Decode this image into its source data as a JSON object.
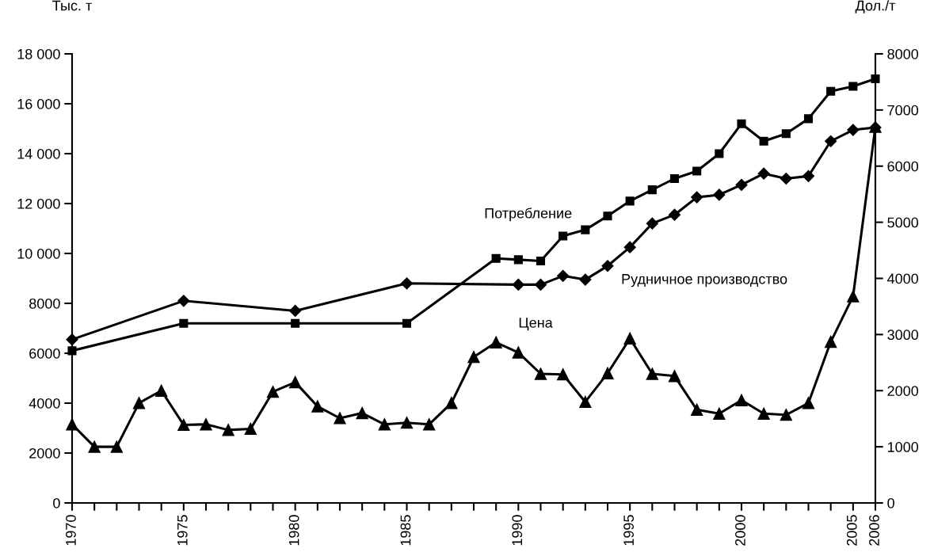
{
  "chart_data": {
    "type": "line",
    "ylabel": "Тыс. т",
    "y2label": "Дол./т",
    "xlim": [
      1970,
      2006
    ],
    "ylim": [
      0,
      18000
    ],
    "y2lim": [
      0,
      8000
    ],
    "xticks": [
      1970,
      {
        "value": 1971,
        "label": null
      },
      {
        "value": 1972,
        "label": null
      },
      {
        "value": 1973,
        "label": null
      },
      {
        "value": 1974,
        "label": null
      },
      1975,
      {
        "value": 1976,
        "label": null
      },
      {
        "value": 1977,
        "label": null
      },
      {
        "value": 1978,
        "label": null
      },
      {
        "value": 1979,
        "label": null
      },
      1980,
      {
        "value": 1981,
        "label": null
      },
      {
        "value": 1982,
        "label": null
      },
      {
        "value": 1983,
        "label": null
      },
      {
        "value": 1984,
        "label": null
      },
      1985,
      {
        "value": 1986,
        "label": null
      },
      {
        "value": 1987,
        "label": null
      },
      {
        "value": 1988,
        "label": null
      },
      {
        "value": 1989,
        "label": null
      },
      1990,
      {
        "value": 1991,
        "label": null
      },
      {
        "value": 1992,
        "label": null
      },
      {
        "value": 1993,
        "label": null
      },
      {
        "value": 1994,
        "label": null
      },
      1995,
      {
        "value": 1996,
        "label": null
      },
      {
        "value": 1997,
        "label": null
      },
      {
        "value": 1998,
        "label": null
      },
      {
        "value": 1999,
        "label": null
      },
      2000,
      {
        "value": 2001,
        "label": null
      },
      {
        "value": 2002,
        "label": null
      },
      {
        "value": 2003,
        "label": null
      },
      {
        "value": 2004,
        "label": null
      },
      2005,
      2006
    ],
    "yticks": [
      0,
      2000,
      4000,
      6000,
      8000,
      {
        "value": 10000,
        "label": "10 000"
      },
      {
        "value": 12000,
        "label": "12 000"
      },
      {
        "value": 14000,
        "label": "14 000"
      },
      {
        "value": 16000,
        "label": "16 000"
      },
      {
        "value": 18000,
        "label": "18 000"
      }
    ],
    "y2ticks": [
      0,
      1000,
      2000,
      3000,
      4000,
      5000,
      6000,
      7000,
      8000
    ],
    "grid": false,
    "legend": false,
    "line_style": "solid",
    "series": [
      {
        "name": "Потребление",
        "color": "#000000",
        "marker": "square",
        "x": [
          1970,
          1975,
          1980,
          1985,
          1989,
          1990,
          1991,
          1992,
          1993,
          1994,
          1995,
          1996,
          1997,
          1998,
          1999,
          2000,
          2001,
          2002,
          2003,
          2004,
          2005,
          2006
        ],
        "values": [
          6100,
          7200,
          7200,
          7200,
          9800,
          9750,
          9700,
          10700,
          10950,
          11500,
          12100,
          12550,
          13000,
          13300,
          14000,
          15200,
          14500,
          14800,
          15400,
          16500,
          16700,
          17000
        ]
      },
      {
        "name": "Рудничное производство",
        "color": "#000000",
        "marker": "diamond",
        "x": [
          1970,
          1975,
          1980,
          1985,
          1990,
          1991,
          1992,
          1993,
          1994,
          1995,
          1996,
          1997,
          1998,
          1999,
          2000,
          2001,
          2002,
          2003,
          2004,
          2005,
          2006
        ],
        "values": [
          6550,
          8100,
          7700,
          8800,
          8750,
          8750,
          9100,
          8950,
          9500,
          10250,
          11200,
          11550,
          12250,
          12350,
          12750,
          13200,
          13000,
          13100,
          14500,
          14950,
          15050
        ]
      },
      {
        "name": "Цена",
        "color": "#000000",
        "marker": "triangle",
        "axis": "y2",
        "x": [
          1970,
          1971,
          1972,
          1973,
          1974,
          1975,
          1976,
          1977,
          1978,
          1979,
          1980,
          1981,
          1982,
          1983,
          1984,
          1985,
          1986,
          1987,
          1988,
          1989,
          1990,
          1991,
          1992,
          1993,
          1994,
          1995,
          1996,
          1997,
          1998,
          1999,
          2000,
          2001,
          2002,
          2003,
          2004,
          2005,
          2006
        ],
        "values": [
          1400,
          1000,
          1000,
          1780,
          2000,
          1390,
          1400,
          1300,
          1320,
          1980,
          2150,
          1720,
          1510,
          1600,
          1400,
          1430,
          1400,
          1780,
          2600,
          2860,
          2680,
          2300,
          2290,
          1800,
          2310,
          2930,
          2300,
          2260,
          1660,
          1590,
          1830,
          1590,
          1570,
          1780,
          2870,
          3680,
          6700
        ]
      }
    ]
  }
}
